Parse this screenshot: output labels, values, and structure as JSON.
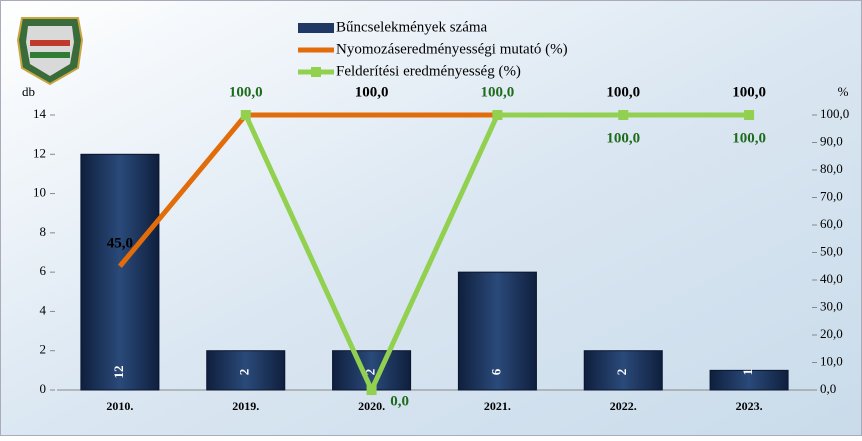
{
  "chart_data": {
    "type": "bar-line",
    "categories": [
      "2010.",
      "2019.",
      "2020.",
      "2021.",
      "2022.",
      "2023."
    ],
    "y_label": "db",
    "y2_label": "%",
    "ylim": [
      0,
      14
    ],
    "yticks": [
      0,
      2,
      4,
      6,
      8,
      10,
      12,
      14
    ],
    "y2lim": [
      0,
      100
    ],
    "y2ticks": [
      {
        "value": 0,
        "label": "0,0"
      },
      {
        "value": 10,
        "label": "10,0"
      },
      {
        "value": 20,
        "label": "20,0"
      },
      {
        "value": 30,
        "label": "30,0"
      },
      {
        "value": 40,
        "label": "40,0"
      },
      {
        "value": 50,
        "label": "50,0"
      },
      {
        "value": 60,
        "label": "60,0"
      },
      {
        "value": 70,
        "label": "70,0"
      },
      {
        "value": 80,
        "label": "80,0"
      },
      {
        "value": 90,
        "label": "90,0"
      },
      {
        "value": 100,
        "label": "100,0"
      }
    ],
    "series": [
      {
        "name": "Bűncselekmények száma",
        "kind": "bar",
        "color": "#1f3864",
        "values": [
          12,
          2,
          2,
          6,
          2,
          1
        ]
      },
      {
        "name": "Nyomozáseredményességi mutató (%)",
        "kind": "line",
        "axis": "y2",
        "color": "#e36c0a",
        "values": [
          45,
          100,
          100,
          100,
          100,
          100
        ],
        "value_labels": [
          "45,0",
          null,
          "100,0",
          null,
          "100,0",
          "100,0"
        ]
      },
      {
        "name": "Felderítési eredményesség (%)",
        "kind": "line",
        "axis": "y2",
        "color": "#92d050",
        "marker": true,
        "values": [
          null,
          100,
          0,
          100,
          100,
          100
        ],
        "value_labels": [
          null,
          "100,0",
          "0,0",
          "100,0",
          "100,0",
          "100,0"
        ]
      }
    ]
  }
}
